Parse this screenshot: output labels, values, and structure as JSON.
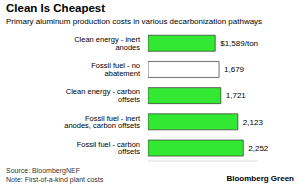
{
  "chart_data": {
    "type": "bar",
    "orientation": "horizontal",
    "title": "Clean Is Cheapest",
    "subtitle": "Primary aluminum production costs in various decarbonization pathways",
    "categories": [
      "Clean energy - inert anodes",
      "Fossil fuel - no abatement",
      "Clean energy - carbon offsets",
      "Fossil fuel - inert anodes, carbon offsets",
      "Fossil fuel - carbon offsets"
    ],
    "values": [
      1589,
      1679,
      1721,
      2123,
      2252
    ],
    "value_labels": [
      "$1,589/ton",
      "1,679",
      "1,721",
      "2,123",
      "2,252"
    ],
    "data_labels": true,
    "colors": [
      "#33e833",
      "#ffffff",
      "#33e833",
      "#33e833",
      "#33e833"
    ],
    "xlim": [
      0,
      2600
    ],
    "tick_labels": "y",
    "grid": false,
    "annotations": [
      "Source: BloombergNEF",
      "Note: First-of-a-kind plant costs",
      "Bloomberg Green"
    ]
  }
}
